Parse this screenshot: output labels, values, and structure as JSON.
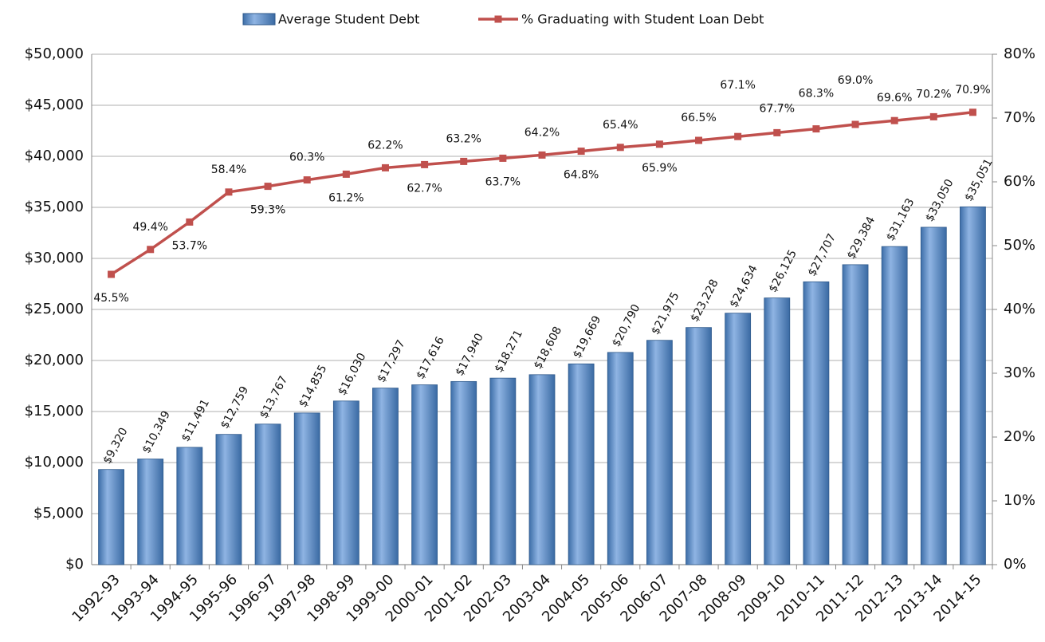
{
  "chart_data": {
    "type": "bar_line",
    "categories": [
      "1992-93",
      "1993-94",
      "1994-95",
      "1995-96",
      "1996-97",
      "1997-98",
      "1998-99",
      "1999-00",
      "2000-01",
      "2001-02",
      "2002-03",
      "2003-04",
      "2004-05",
      "2005-06",
      "2006-07",
      "2007-08",
      "2008-09",
      "2009-10",
      "2010-11",
      "2011-12",
      "2012-13",
      "2013-14",
      "2014-15"
    ],
    "series": [
      {
        "name": "Average Student Debt",
        "color": "#4f81bd",
        "type": "bar",
        "values": [
          9320,
          10349,
          11491,
          12759,
          13767,
          14855,
          16030,
          17297,
          17616,
          17940,
          18271,
          18608,
          19669,
          20790,
          21975,
          23228,
          24634,
          26125,
          27707,
          29384,
          31163,
          33050,
          35051
        ],
        "value_labels": [
          "$9,320",
          "$10,349",
          "$11,491",
          "$12,759",
          "$13,767",
          "$14,855",
          "$16,030",
          "$17,297",
          "$17,616",
          "$17,940",
          "$18,271",
          "$18,608",
          "$19,669",
          "$20,790",
          "$21,975",
          "$23,228",
          "$24,634",
          "$26,125",
          "$27,707",
          "$29,384",
          "$31,163",
          "$33,050",
          "$35,051"
        ]
      },
      {
        "name": "% Graduating with Student Loan Debt",
        "color": "#c0504d",
        "type": "line",
        "axis": "y2",
        "values": [
          45.5,
          49.4,
          53.7,
          58.4,
          59.3,
          60.3,
          61.2,
          62.2,
          62.7,
          63.2,
          63.7,
          64.2,
          64.8,
          65.4,
          65.9,
          66.5,
          67.1,
          67.7,
          68.3,
          69.0,
          69.6,
          70.2,
          70.9
        ],
        "value_labels": [
          "45.5%",
          "49.4%",
          "53.7%",
          "58.4%",
          "59.3%",
          "60.3%",
          "61.2%",
          "62.2%",
          "62.7%",
          "63.2%",
          "63.7%",
          "64.2%",
          "64.8%",
          "65.4%",
          "65.9%",
          "66.5%",
          "67.1%",
          "67.7%",
          "68.3%",
          "69.0%",
          "69.6%",
          "70.2%",
          "70.9%"
        ]
      }
    ],
    "ylim": [
      0,
      50000
    ],
    "yticks": [
      {
        "value": 0,
        "label": "$0"
      },
      {
        "value": 5000,
        "label": "$5,000"
      },
      {
        "value": 10000,
        "label": "$10,000"
      },
      {
        "value": 15000,
        "label": "$15,000"
      },
      {
        "value": 20000,
        "label": "$20,000"
      },
      {
        "value": 25000,
        "label": "$25,000"
      },
      {
        "value": 30000,
        "label": "$30,000"
      },
      {
        "value": 35000,
        "label": "$35,000"
      },
      {
        "value": 40000,
        "label": "$40,000"
      },
      {
        "value": 45000,
        "label": "$45,000"
      },
      {
        "value": 50000,
        "label": "$50,000"
      }
    ],
    "y2lim": [
      0,
      80
    ],
    "y2ticks": [
      {
        "value": 0,
        "label": "0%"
      },
      {
        "value": 10,
        "label": "10%"
      },
      {
        "value": 20,
        "label": "20%"
      },
      {
        "value": 30,
        "label": "30%"
      },
      {
        "value": 40,
        "label": "40%"
      },
      {
        "value": 50,
        "label": "50%"
      },
      {
        "value": 60,
        "label": "60%"
      },
      {
        "value": 70,
        "label": "70%"
      },
      {
        "value": 80,
        "label": "80%"
      }
    ],
    "grid": true,
    "legend": "top"
  }
}
